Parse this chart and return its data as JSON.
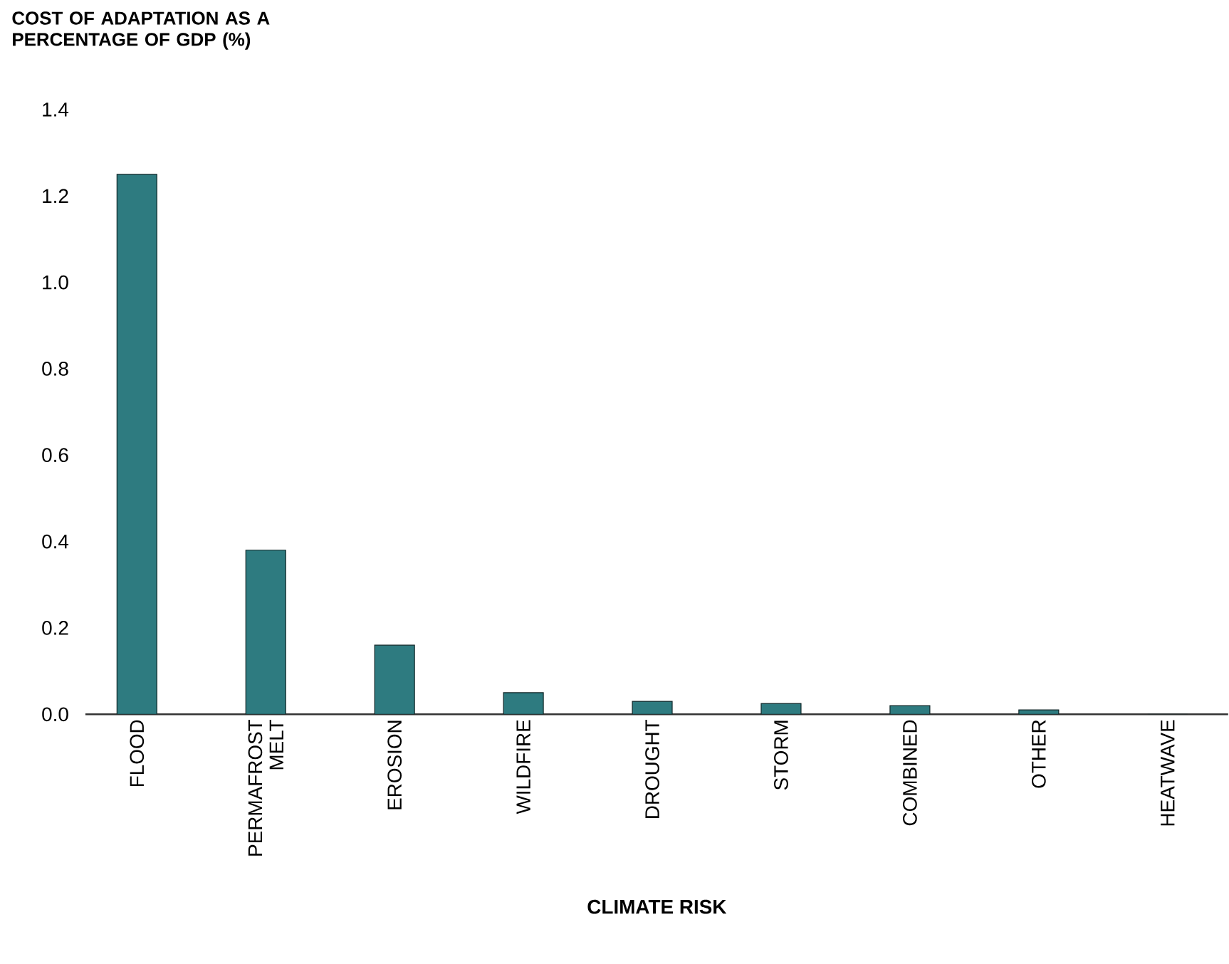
{
  "chart_data": {
    "type": "bar",
    "title": "COST OF ADAPTATION AS A PERCENTAGE OF GDP (%)",
    "xlabel": "CLIMATE RISK",
    "categories": [
      "FLOOD",
      "PERMAFROST MELT",
      "EROSION",
      "WILDFIRE",
      "DROUGHT",
      "STORM",
      "COMBINED",
      "OTHER",
      "HEATWAVE"
    ],
    "values": [
      1.25,
      0.38,
      0.16,
      0.05,
      0.03,
      0.025,
      0.02,
      0.01,
      0
    ],
    "color": "#2e7b80",
    "ylim": [
      0,
      1.4
    ],
    "yticks": [
      {
        "value": 0,
        "label": "0.0"
      },
      {
        "value": 0.2,
        "label": "0.2"
      },
      {
        "value": 0.4,
        "label": "0.4"
      },
      {
        "value": 0.6,
        "label": "0.6"
      },
      {
        "value": 0.8,
        "label": "0.8"
      },
      {
        "value": 1.0,
        "label": "1.0"
      },
      {
        "value": 1.2,
        "label": "1.2"
      },
      {
        "value": 1.4,
        "label": "1.4"
      }
    ]
  }
}
